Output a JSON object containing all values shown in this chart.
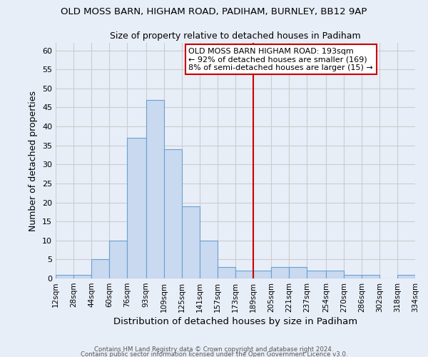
{
  "title": "OLD MOSS BARN, HIGHAM ROAD, PADIHAM, BURNLEY, BB12 9AP",
  "subtitle": "Size of property relative to detached houses in Padiham",
  "xlabel": "Distribution of detached houses by size in Padiham",
  "ylabel": "Number of detached properties",
  "bin_edges": [
    12,
    28,
    44,
    60,
    76,
    93,
    109,
    125,
    141,
    157,
    173,
    189,
    205,
    221,
    237,
    254,
    270,
    286,
    302,
    318,
    334
  ],
  "bar_heights": [
    1,
    1,
    5,
    10,
    37,
    47,
    34,
    19,
    10,
    3,
    2,
    2,
    3,
    3,
    2,
    2,
    1,
    1,
    0,
    1
  ],
  "bar_color": "#c8d9f0",
  "bar_edge_color": "#6ca0d0",
  "grid_color": "#cccccc",
  "vline_x": 189,
  "vline_color": "#cc0000",
  "annotation_text": "OLD MOSS BARN HIGHAM ROAD: 193sqm\n← 92% of detached houses are smaller (169)\n8% of semi-detached houses are larger (15) →",
  "ylim": [
    0,
    62
  ],
  "yticks": [
    0,
    5,
    10,
    15,
    20,
    25,
    30,
    35,
    40,
    45,
    50,
    55,
    60
  ],
  "tick_labels": [
    "12sqm",
    "28sqm",
    "44sqm",
    "60sqm",
    "76sqm",
    "93sqm",
    "109sqm",
    "125sqm",
    "141sqm",
    "157sqm",
    "173sqm",
    "189sqm",
    "205sqm",
    "221sqm",
    "237sqm",
    "254sqm",
    "270sqm",
    "286sqm",
    "302sqm",
    "318sqm",
    "334sqm"
  ],
  "footer_line1": "Contains HM Land Registry data © Crown copyright and database right 2024.",
  "footer_line2": "Contains public sector information licensed under the Open Government Licence v3.0.",
  "background_color": "#e8eef8",
  "plot_background_color": "#e8eef8"
}
